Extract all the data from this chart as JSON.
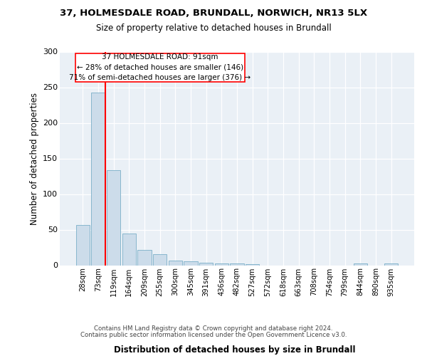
{
  "title1": "37, HOLMESDALE ROAD, BRUNDALL, NORWICH, NR13 5LX",
  "title2": "Size of property relative to detached houses in Brundall",
  "xlabel": "Distribution of detached houses by size in Brundall",
  "ylabel": "Number of detached properties",
  "bin_labels": [
    "28sqm",
    "73sqm",
    "119sqm",
    "164sqm",
    "209sqm",
    "255sqm",
    "300sqm",
    "345sqm",
    "391sqm",
    "436sqm",
    "482sqm",
    "527sqm",
    "572sqm",
    "618sqm",
    "663sqm",
    "708sqm",
    "754sqm",
    "799sqm",
    "844sqm",
    "890sqm",
    "935sqm"
  ],
  "bar_heights": [
    57,
    243,
    134,
    45,
    22,
    16,
    7,
    6,
    4,
    3,
    3,
    2,
    0,
    0,
    0,
    0,
    0,
    0,
    3,
    0,
    3
  ],
  "bar_color": "#ccdcea",
  "bar_edge_color": "#7aafc8",
  "ylim": [
    0,
    300
  ],
  "yticks": [
    0,
    50,
    100,
    150,
    200,
    250,
    300
  ],
  "annotation_line1": "37 HOLMESDALE ROAD: 91sqm",
  "annotation_line2": "← 28% of detached houses are smaller (146)",
  "annotation_line3": "71% of semi-detached houses are larger (376) →",
  "footer1": "Contains HM Land Registry data © Crown copyright and database right 2024.",
  "footer2": "Contains public sector information licensed under the Open Government Licence v3.0."
}
